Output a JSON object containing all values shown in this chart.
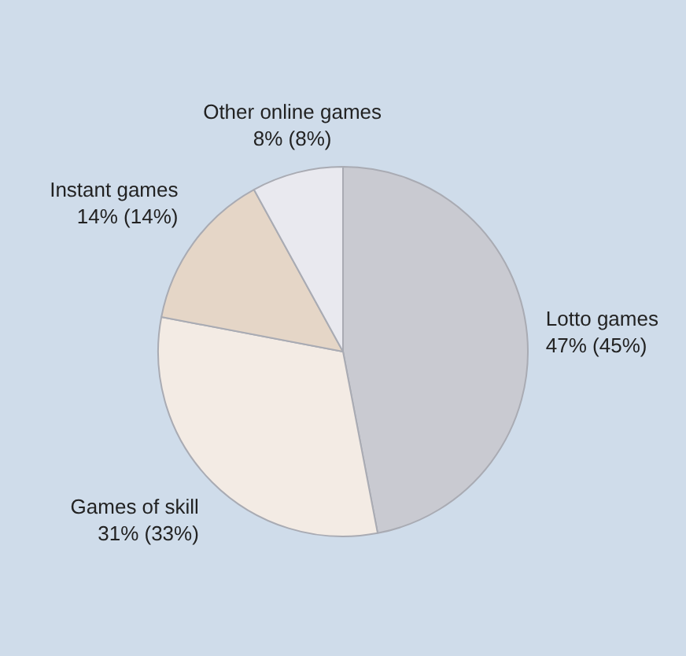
{
  "chart_data": {
    "type": "pie",
    "categories": [
      "Lotto games",
      "Games of skill",
      "Instant games",
      "Other online games"
    ],
    "values": [
      47,
      31,
      14,
      8
    ],
    "value_labels": [
      "47% (45%)",
      "31% (33%)",
      "14% (14%)",
      "8% (8%)"
    ],
    "colors": [
      "#c9cad1",
      "#f3ebe4",
      "#e5d6c7",
      "#e9e9ef"
    ],
    "legend": false
  }
}
